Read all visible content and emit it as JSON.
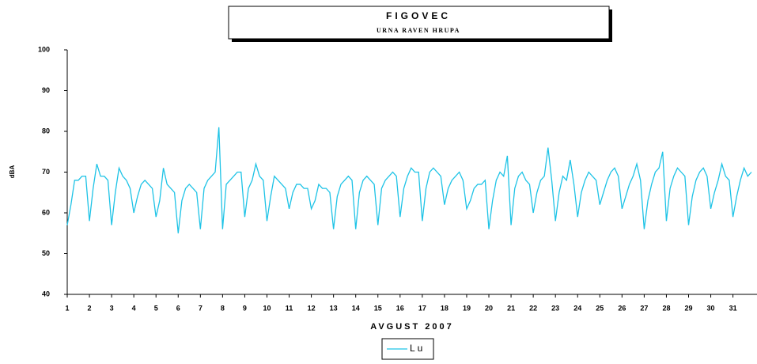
{
  "chart_data": {
    "type": "line",
    "title": "FIGOVEC",
    "subtitle": "URNA RAVEN HRUPA",
    "y_label": "dBA",
    "x_label": "AVGUST 2007",
    "categories": [
      "1",
      null,
      null,
      null,
      null,
      null,
      "2",
      null,
      null,
      null,
      null,
      null,
      "3",
      null,
      null,
      null,
      null,
      null,
      "4",
      null,
      null,
      null,
      null,
      null,
      "5",
      null,
      null,
      null,
      null,
      null,
      "6",
      null,
      null,
      null,
      null,
      null,
      "7",
      null,
      null,
      null,
      null,
      null,
      "8",
      null,
      null,
      null,
      null,
      null,
      "9",
      null,
      null,
      null,
      null,
      null,
      "10",
      null,
      null,
      null,
      null,
      null,
      "11",
      null,
      null,
      null,
      null,
      null,
      "12",
      null,
      null,
      null,
      null,
      null,
      "13",
      null,
      null,
      null,
      null,
      null,
      "14",
      null,
      null,
      null,
      null,
      null,
      "15",
      null,
      null,
      null,
      null,
      null,
      "16",
      null,
      null,
      null,
      null,
      null,
      "17",
      null,
      null,
      null,
      null,
      null,
      "18",
      null,
      null,
      null,
      null,
      null,
      "19",
      null,
      null,
      null,
      null,
      null,
      "20",
      null,
      null,
      null,
      null,
      null,
      "21",
      null,
      null,
      null,
      null,
      null,
      "22",
      null,
      null,
      null,
      null,
      null,
      "23",
      null,
      null,
      null,
      null,
      null,
      "24",
      null,
      null,
      null,
      null,
      null,
      "25",
      null,
      null,
      null,
      null,
      null,
      "26",
      null,
      null,
      null,
      null,
      null,
      "27",
      null,
      null,
      null,
      null,
      null,
      "28",
      null,
      null,
      null,
      null,
      null,
      "29",
      null,
      null,
      null,
      null,
      null,
      "30",
      null,
      null,
      null,
      null,
      null,
      "31",
      null,
      null,
      null,
      null,
      null
    ],
    "series": [
      {
        "name": "Lu",
        "color": "#1ec3e6",
        "values": [
          57,
          62,
          68,
          68,
          69,
          69,
          58,
          66,
          72,
          69,
          69,
          68,
          57,
          65,
          71,
          69,
          68,
          66,
          60,
          64,
          67,
          68,
          67,
          66,
          59,
          63,
          71,
          67,
          66,
          65,
          55,
          63,
          66,
          67,
          66,
          65,
          56,
          66,
          68,
          69,
          70,
          81,
          56,
          67,
          68,
          69,
          70,
          70,
          59,
          66,
          68,
          72,
          69,
          68,
          58,
          64,
          69,
          68,
          67,
          66,
          61,
          65,
          67,
          67,
          66,
          66,
          61,
          63,
          67,
          66,
          66,
          65,
          56,
          64,
          67,
          68,
          69,
          68,
          56,
          65,
          68,
          69,
          68,
          67,
          57,
          66,
          68,
          69,
          70,
          69,
          59,
          66,
          69,
          71,
          70,
          70,
          58,
          66,
          70,
          71,
          70,
          69,
          62,
          66,
          68,
          69,
          70,
          68,
          61,
          63,
          66,
          67,
          67,
          68,
          56,
          63,
          68,
          70,
          69,
          74,
          57,
          66,
          69,
          70,
          68,
          67,
          60,
          65,
          68,
          69,
          76,
          68,
          58,
          65,
          69,
          68,
          73,
          67,
          59,
          65,
          68,
          70,
          69,
          68,
          62,
          65,
          68,
          70,
          71,
          69,
          61,
          64,
          67,
          69,
          72,
          68,
          56,
          63,
          67,
          70,
          71,
          75,
          58,
          66,
          69,
          71,
          70,
          69,
          57,
          64,
          68,
          70,
          71,
          69,
          61,
          65,
          68,
          72,
          69,
          68,
          59,
          64,
          68,
          71,
          69,
          70
        ]
      }
    ],
    "ylim": [
      40,
      100
    ],
    "yticks": [
      40,
      50,
      60,
      70,
      80,
      90,
      100
    ],
    "grid": false
  }
}
